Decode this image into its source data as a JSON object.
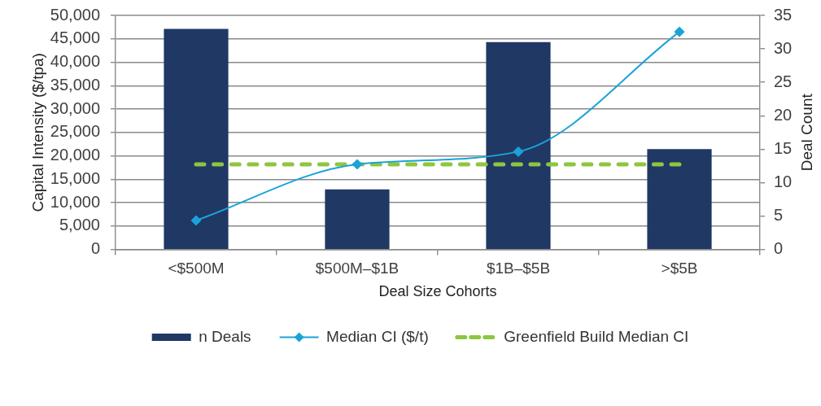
{
  "chart_data": {
    "type": "bar",
    "xlabel": "Deal Size Cohorts",
    "ylabel": "Capital Intensity ($/tpa)",
    "y2label": "Deal Count",
    "categories": [
      "<$500M",
      "$500M–$1B",
      "$1B–$5B",
      ">$5B"
    ],
    "series": [
      {
        "name": "n Deals",
        "axis": "y2",
        "color": "#203864",
        "values": [
          33,
          9,
          31,
          15
        ]
      },
      {
        "name": "Median CI ($/t)",
        "type": "line",
        "color": "#1ba3d8",
        "marker": "diamond",
        "line_style": "solid",
        "values": [
          6200,
          18200,
          20900,
          46500
        ]
      },
      {
        "name": "Greenfield Build Median CI",
        "type": "line",
        "color": "#8dc63f",
        "marker": "none",
        "line_style": "dashed",
        "values": [
          18200,
          18200,
          18200,
          18200
        ]
      }
    ],
    "ylim": [
      0,
      50000
    ],
    "yticks": [
      0,
      {
        "value": 5000,
        "label": "5,000"
      },
      {
        "value": 10000,
        "label": "10,000"
      },
      {
        "value": 15000,
        "label": "15,000"
      },
      {
        "value": 20000,
        "label": "20,000"
      },
      {
        "value": 25000,
        "label": "25,000"
      },
      {
        "value": 30000,
        "label": "30,000"
      },
      {
        "value": 35000,
        "label": "35,000"
      },
      {
        "value": 40000,
        "label": "40,000"
      },
      {
        "value": 45000,
        "label": "45,000"
      },
      {
        "value": 50000,
        "label": "50,000"
      }
    ],
    "y2lim": [
      0,
      35
    ],
    "y2ticks": [
      0,
      5,
      10,
      15,
      20,
      25,
      30,
      35
    ],
    "grid": "y",
    "legend": "bottom"
  }
}
